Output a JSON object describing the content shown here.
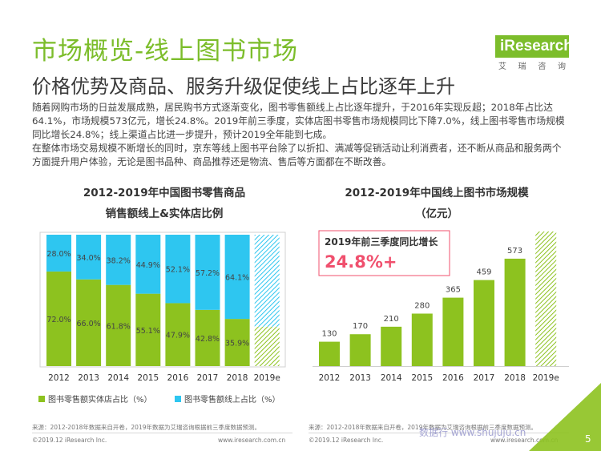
{
  "title": "市场概览-线上图书市场",
  "subtitle": "价格优势及商品、服务升级促使线上占比逐年上升",
  "logo": {
    "brand": "iResearch",
    "cn": [
      "艾",
      "瑞",
      "咨",
      "询"
    ]
  },
  "paragraph": [
    "随着网购市场的日益发展成熟，居民购书方式逐渐变化，图书零售额线上占比逐年提升，于2016年实现反超；2018年占比达64.1%，市场规模573亿元，增长24.8%。2019年前三季度，实体店图书零售市场规模同比下降7.0%，线上图书零售市场规模同比增长24.8%；线上渠道占比进一步提升，预计2019全年能到七成。",
    "在整体市场交易规模不断增长的同时，京东等线上图书平台除了以折扣、满减等促销活动让利消费者，还不断从商品和服务两个方面提升用户体验，无论是图书品种、商品推荐还是物流、售后等方面都在不断改善。"
  ],
  "colors": {
    "green": "#8dc21f",
    "cyan": "#2ec6f0",
    "accent": "#7cbd2b",
    "pink": "#f0506e"
  },
  "chart_data": [
    {
      "type": "bar",
      "stacked": true,
      "title_lines": [
        "2012-2019年中国图书零售商品",
        "销售额线上&实体店比例"
      ],
      "categories": [
        "2012",
        "2013",
        "2014",
        "2015",
        "2016",
        "2017",
        "2018",
        "2019e"
      ],
      "series": [
        {
          "name": "图书零售额实体店占比（%）",
          "values": [
            72.0,
            66.0,
            61.8,
            55.1,
            47.9,
            42.8,
            35.9,
            null
          ],
          "labels": [
            "72.0%",
            "66.0%",
            "61.8%",
            "55.1%",
            "47.9%",
            "42.8%",
            "35.9%",
            ""
          ]
        },
        {
          "name": "图书零售额线上占比（%）",
          "values": [
            28.0,
            34.0,
            38.2,
            44.9,
            52.1,
            57.2,
            64.1,
            null
          ],
          "labels": [
            "28.0%",
            "34.0%",
            "38.2%",
            "44.9%",
            "52.1%",
            "57.2%",
            "64.1%",
            ""
          ]
        }
      ],
      "ylim": [
        0,
        100
      ],
      "forecast_note": "2019e shown as hatched estimate, online share ~70%"
    },
    {
      "type": "bar",
      "title_lines": [
        "2012-2019年中国线上图书市场规模",
        "（亿元）"
      ],
      "categories": [
        "2012",
        "2013",
        "2014",
        "2015",
        "2016",
        "2017",
        "2018",
        "2019e"
      ],
      "values": [
        130,
        170,
        210,
        280,
        365,
        459,
        573,
        null
      ],
      "labels": [
        "130",
        "170",
        "210",
        "280",
        "365",
        "459",
        "573",
        ""
      ],
      "ylim": [
        0,
        650
      ],
      "callout": {
        "label": "2019年前三季度同比增长",
        "value": "24.8%+"
      }
    }
  ],
  "source_left": "来源：2012-2018年数据来自开卷，2019年数据为艾瑞咨询根据前三季度数据预测。",
  "source_right": "来源：2012-2018年数据来自开卷，2019年数据为艾瑞咨询根据前三季度数据预测。",
  "footer": {
    "copyright": "©2019.12 iResearch Inc.",
    "url": "www.iresearch.com.cn",
    "page": "5"
  },
  "watermark": "数据行 www.shujuju.cn"
}
